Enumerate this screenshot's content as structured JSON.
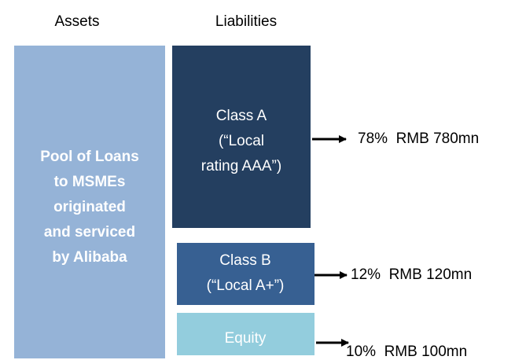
{
  "headers": {
    "assets": "Assets",
    "liabilities": "Liabilities"
  },
  "assets": {
    "lines": [
      "Pool of Loans",
      "to MSMEs",
      "originated",
      "and serviced",
      "by Alibaba"
    ]
  },
  "liabilities": [
    {
      "lines": [
        "Class A",
        "(“Local",
        "rating AAA”)"
      ],
      "allocation": "78%  RMB 780mn"
    },
    {
      "lines": [
        "Class B",
        "(“Local A+”)"
      ],
      "allocation": "12%  RMB 120mn"
    },
    {
      "lines": [
        "Equity"
      ],
      "allocation": "10%  RMB 100mn"
    }
  ]
}
